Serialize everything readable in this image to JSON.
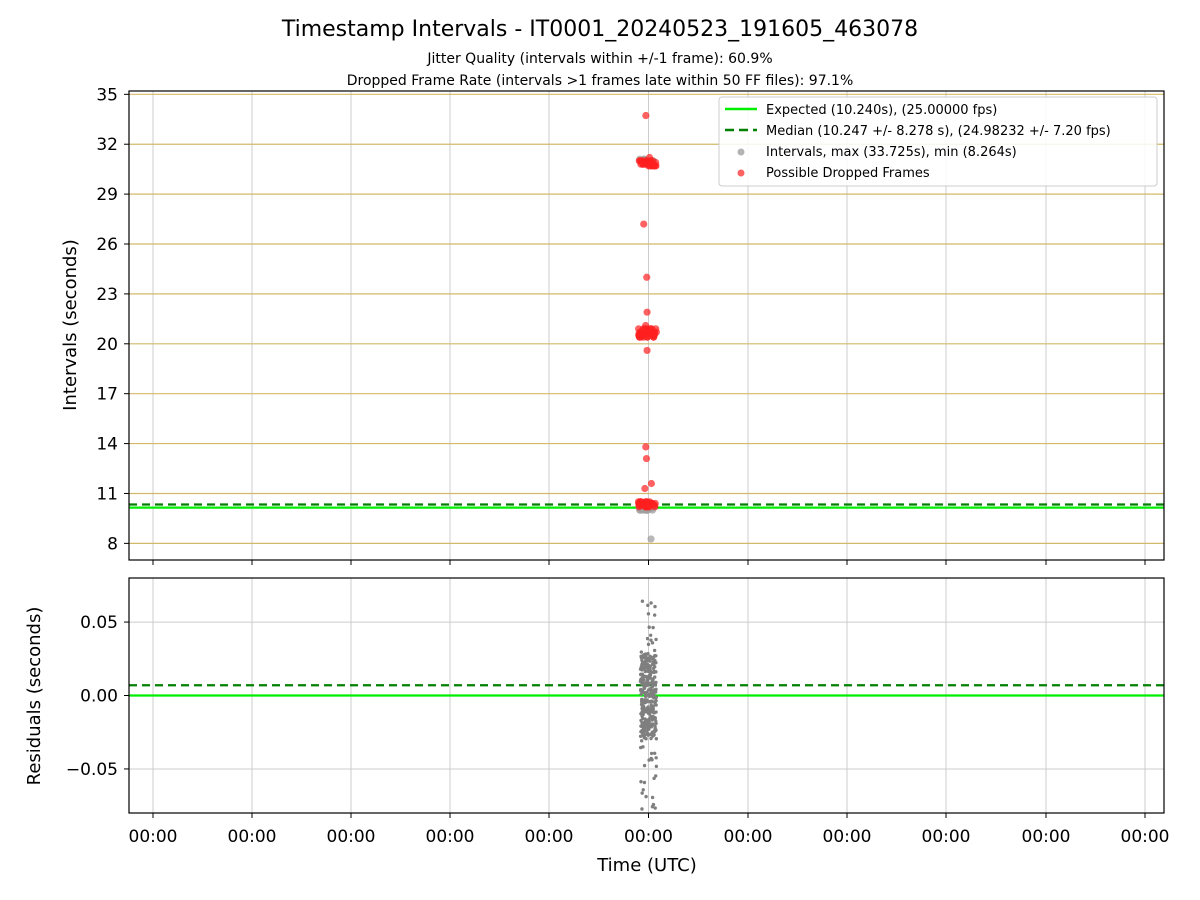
{
  "chart_data": [
    {
      "type": "scatter",
      "title": "Timestamp Intervals - IT0001_20240523_191605_463078",
      "subtitle_lines": [
        "Jitter Quality (intervals within +/-1 frame): 60.9%",
        "Dropped Frame Rate (intervals >1 frames late within 50 FF files): 97.1%"
      ],
      "xlabel": "",
      "ylabel": "Intervals (seconds)",
      "ylim": [
        7,
        35.2
      ],
      "yticks": [
        8,
        11,
        14,
        17,
        20,
        23,
        26,
        29,
        32,
        35
      ],
      "xtick_labels": [
        "00:00",
        "00:00",
        "00:00",
        "00:00",
        "00:00",
        "00:00",
        "00:00",
        "00:00",
        "00:00",
        "00:00",
        "00:00"
      ],
      "grid": true,
      "legend_position": "upper right",
      "reference_lines": [
        {
          "name": "Expected (10.240s), (25.00000 fps)",
          "y": 10.24,
          "style": "solid",
          "color": "#00ee00"
        },
        {
          "name": "Median (10.247 +/- 8.278 s), (24.98232 +/- 7.20 fps)",
          "y": 10.247,
          "style": "dashed",
          "color": "#008000"
        }
      ],
      "series": [
        {
          "name": "Intervals, max (33.725s), min (8.264s)",
          "color": "#a0a0a0",
          "values": [
            10.0,
            10.1,
            10.2,
            10.3,
            31.1,
            31.0,
            8.264
          ]
        },
        {
          "name": "Possible Dropped Frames",
          "color": "#ff2020",
          "values": [
            33.725,
            31.2,
            31.0,
            30.9,
            30.8,
            30.7,
            27.2,
            24.0,
            21.9,
            21.1,
            20.9,
            20.7,
            20.6,
            20.5,
            20.4,
            19.6,
            13.8,
            13.1,
            11.6,
            11.3,
            10.5,
            10.4,
            10.3,
            10.2
          ]
        }
      ]
    },
    {
      "type": "scatter",
      "xlabel": "Time (UTC)",
      "ylabel": "Residuals (seconds)",
      "ylim": [
        -0.08,
        0.08
      ],
      "yticks": [
        0.05,
        0.0,
        -0.05
      ],
      "ytick_labels": [
        "0.05",
        "0.00",
        "−0.05"
      ],
      "xtick_labels": [
        "00:00",
        "00:00",
        "00:00",
        "00:00",
        "00:00",
        "00:00",
        "00:00",
        "00:00",
        "00:00",
        "00:00",
        "00:00"
      ],
      "grid": true,
      "reference_lines": [
        {
          "y": 0.0,
          "style": "solid",
          "color": "#00ee00"
        },
        {
          "y": 0.007,
          "style": "dashed",
          "color": "#008000"
        }
      ],
      "series": [
        {
          "name": "",
          "color": "#7f7f7f",
          "values": [
            0.063,
            0.06,
            0.055,
            0.045,
            0.04,
            0.038,
            0.035,
            0.03,
            0.027,
            0.025,
            0.022,
            0.02,
            0.018,
            0.015,
            0.012,
            0.01,
            0.008,
            0.005,
            0.003,
            0.0,
            -0.003,
            -0.005,
            -0.008,
            -0.01,
            -0.012,
            -0.015,
            -0.018,
            -0.02,
            -0.022,
            -0.025,
            -0.028,
            -0.03,
            -0.035,
            -0.038,
            -0.042,
            -0.045,
            -0.048,
            -0.055,
            -0.06,
            -0.065,
            -0.07,
            -0.075,
            -0.078
          ]
        }
      ]
    }
  ]
}
